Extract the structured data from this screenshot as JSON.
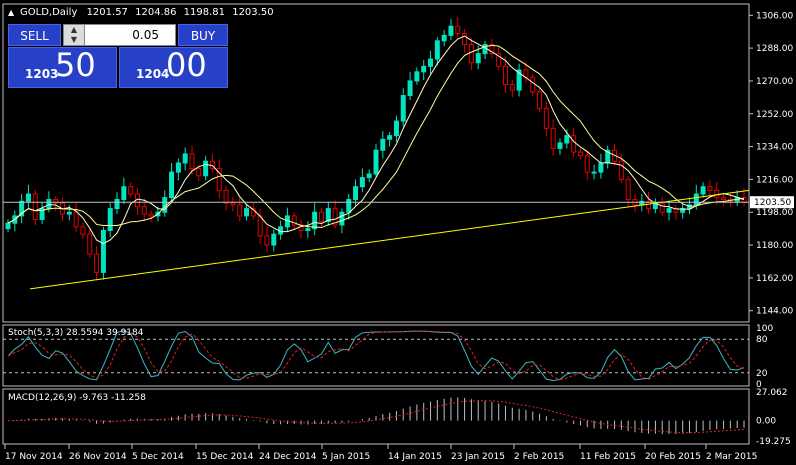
{
  "header": {
    "symbol": "GOLD,Daily",
    "open": "1201.57",
    "high": "1204.86",
    "low": "1198.81",
    "close": "1203.50"
  },
  "trade": {
    "sell_label": "SELL",
    "buy_label": "BUY",
    "lot": "0.05",
    "bid_small": "1203",
    "bid_big": "50",
    "ask_small": "1204",
    "ask_big": "00"
  },
  "price_axis": {
    "labels": [
      "1306.00",
      "1288.00",
      "1270.00",
      "1252.00",
      "1234.00",
      "1216.00",
      "1198.00",
      "1180.00",
      "1162.00",
      "1144.00"
    ],
    "current_price": "1203.50"
  },
  "time_axis": {
    "labels": [
      "17 Nov 2014",
      "26 Nov 2014",
      "5 Dec 2014",
      "15 Dec 2014",
      "24 Dec 2014",
      "5 Jan 2015",
      "14 Jan 2015",
      "23 Jan 2015",
      "2 Feb 2015",
      "11 Feb 2015",
      "20 Feb 2015",
      "2 Mar 2015"
    ]
  },
  "stoch": {
    "label": "Stoch(5,3,3) 28.5594 39.9184",
    "levels": [
      "100",
      "80",
      "20",
      "0"
    ]
  },
  "macd": {
    "label": "MACD(12,26,9) -9.763 -11.258",
    "levels": [
      "27.062",
      "0.00",
      "-19.275"
    ]
  },
  "colors": {
    "bull": "#00e4c0",
    "bear": "#e00000",
    "ma": "#ffffcc",
    "trend": "#ffff00",
    "stoch_main": "#39b8c8",
    "stoch_signal": "#e02020",
    "grid": "#c0c0c0"
  },
  "chart_data": {
    "type": "candlestick",
    "symbol": "GOLD",
    "timeframe": "Daily",
    "ylim": [
      1140,
      1310
    ],
    "x_labels": [
      "17 Nov 2014",
      "26 Nov 2014",
      "5 Dec 2014",
      "15 Dec 2014",
      "24 Dec 2014",
      "5 Jan 2015",
      "14 Jan 2015",
      "23 Jan 2015",
      "2 Feb 2015",
      "11 Feb 2015",
      "20 Feb 2015",
      "2 Mar 2015"
    ],
    "close": [
      1192,
      1196,
      1204,
      1208,
      1194,
      1200,
      1205,
      1203,
      1197,
      1198,
      1190,
      1186,
      1175,
      1165,
      1188,
      1200,
      1205,
      1212,
      1208,
      1201,
      1197,
      1196,
      1198,
      1206,
      1220,
      1225,
      1230,
      1222,
      1218,
      1226,
      1222,
      1210,
      1203,
      1202,
      1196,
      1200,
      1196,
      1185,
      1180,
      1186,
      1190,
      1196,
      1191,
      1188,
      1189,
      1198,
      1193,
      1200,
      1191,
      1198,
      1205,
      1212,
      1217,
      1219,
      1232,
      1238,
      1240,
      1248,
      1262,
      1270,
      1275,
      1278,
      1282,
      1292,
      1295,
      1300,
      1296,
      1290,
      1280,
      1285,
      1290,
      1285,
      1278,
      1268,
      1265,
      1276,
      1272,
      1264,
      1255,
      1244,
      1233,
      1236,
      1240,
      1231,
      1229,
      1220,
      1220,
      1225,
      1232,
      1226,
      1216,
      1205,
      1202,
      1204,
      1200,
      1203,
      1198,
      1200,
      1198,
      1200,
      1202,
      1208,
      1212,
      1210,
      1206,
      1205,
      1204,
      1206,
      1203.5
    ]
  }
}
